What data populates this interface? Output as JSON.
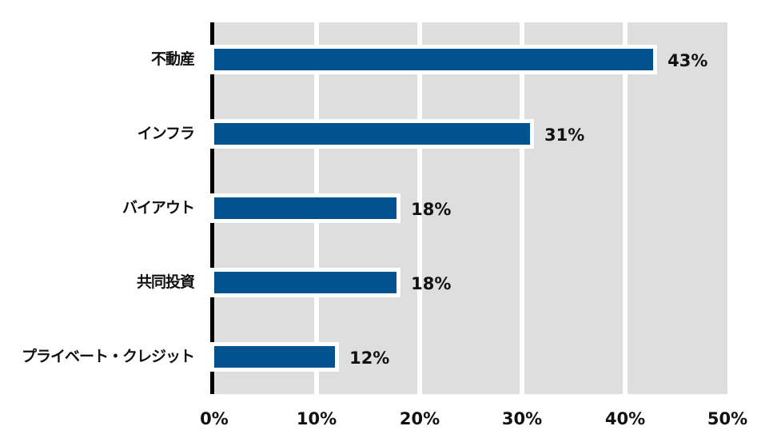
{
  "chart_data": {
    "type": "bar",
    "orientation": "horizontal",
    "title": "",
    "xlabel": "",
    "ylabel": "",
    "categories": [
      "不動産",
      "インフラ",
      "バイアウト",
      "共同投資",
      "プライベート・クレジット"
    ],
    "values": [
      43,
      31,
      18,
      18,
      12
    ],
    "value_labels": [
      "43%",
      "31%",
      "18%",
      "18%",
      "12%"
    ],
    "xlim": [
      0,
      50
    ],
    "x_ticks": [
      "0%",
      "10%",
      "20%",
      "30%",
      "40%",
      "50%"
    ],
    "grid": true,
    "legend": null,
    "colors": {
      "bar": "#00538f",
      "plot_bg": "#dedede",
      "grid": "#ffffff",
      "axis": "#000000"
    }
  }
}
